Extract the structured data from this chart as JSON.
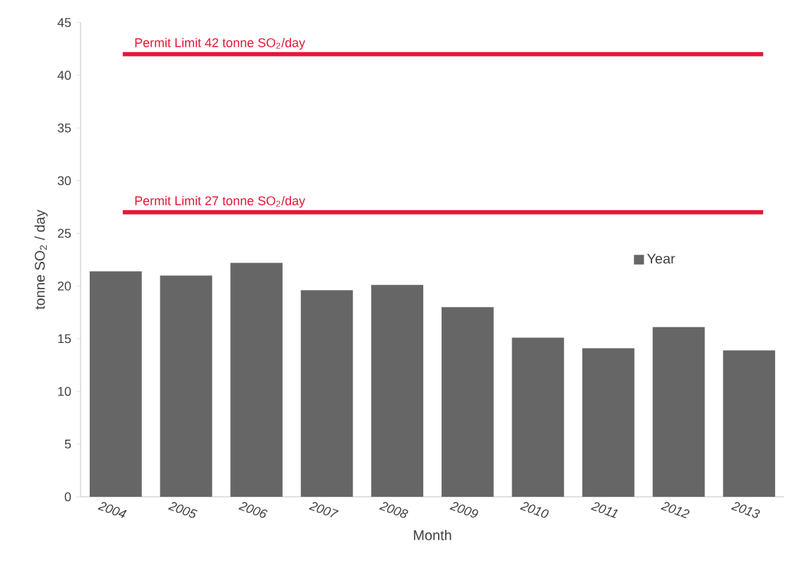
{
  "chart_data": {
    "type": "bar",
    "xlabel": "Month",
    "ylabel": "tonne SO$_{2}$ / day",
    "categories": [
      "2004",
      "2005",
      "2006",
      "2007",
      "2008",
      "2009",
      "2010",
      "2011",
      "2012",
      "2013"
    ],
    "series": [
      {
        "name": "Year",
        "color": "#666666",
        "values": [
          21.4,
          21.0,
          22.2,
          19.6,
          20.1,
          18.0,
          15.1,
          14.1,
          16.1,
          13.9
        ]
      }
    ],
    "ylim": [
      0,
      45
    ],
    "yticks": [
      0,
      5,
      10,
      15,
      20,
      25,
      30,
      35,
      40,
      45
    ],
    "ref_lines": [
      {
        "axis": "y",
        "value": 27,
        "label": "Permit Limit 27 tonne SO$_{2}$/day",
        "color": "#e31837"
      },
      {
        "axis": "y",
        "value": 42,
        "label": "Permit Limit 42 tonne SO$_{2}$/day",
        "color": "#e31837"
      }
    ],
    "legend": "right",
    "grid": false
  }
}
